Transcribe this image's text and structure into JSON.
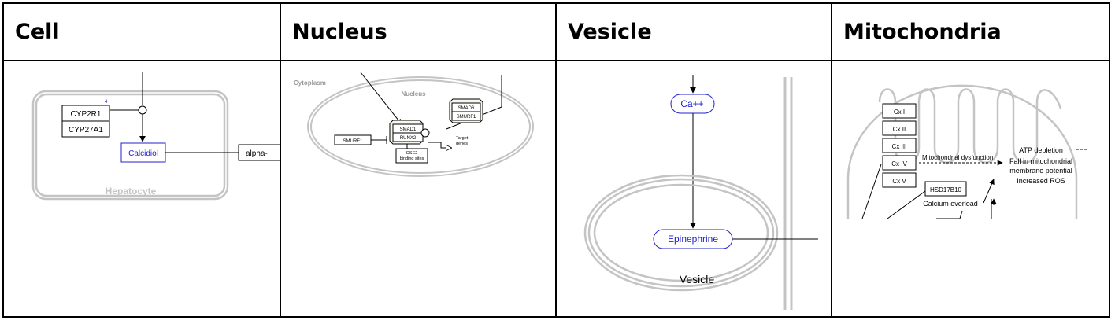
{
  "headers": [
    "Cell",
    "Nucleus",
    "Vesicle",
    "Mitochondria"
  ],
  "cell_panel": {
    "genes": [
      "CYP2R1",
      "CYP27A1"
    ],
    "superscript": "4",
    "metabolite": "Calcidiol",
    "partial_label": "alpha-",
    "compartment": "Hepatocyte"
  },
  "nucleus_panel": {
    "cytoplasm": "Cytoplasm",
    "nucleus": "Nucleus",
    "complex_genes": [
      "SMAD1",
      "RUNX2"
    ],
    "right_complex": [
      "SMAD6",
      "SMURF1"
    ],
    "smurf": "SMURF1",
    "ose": [
      "OSE2",
      "binding sites"
    ],
    "target": [
      "Target",
      "genes"
    ]
  },
  "vesicle_panel": {
    "ion": "Ca++",
    "metabolite": "Epinephrine",
    "compartment": "Vesicle"
  },
  "mito_panel": {
    "complexes": [
      "Cx I",
      "Cx II",
      "Cx III",
      "Cx IV",
      "Cx V"
    ],
    "gene": "HSD17B10",
    "dysfunction": "Mitochondrial dysfunction",
    "effects": [
      "ATP depletion",
      "Fall in mitochondrial",
      "membrane potential",
      "Increased ROS"
    ],
    "calcium": "Calcium overload"
  },
  "colors": {
    "metabolite": "#2222cc",
    "compartment": "#bdbdbd",
    "gray_text": "#999999"
  }
}
